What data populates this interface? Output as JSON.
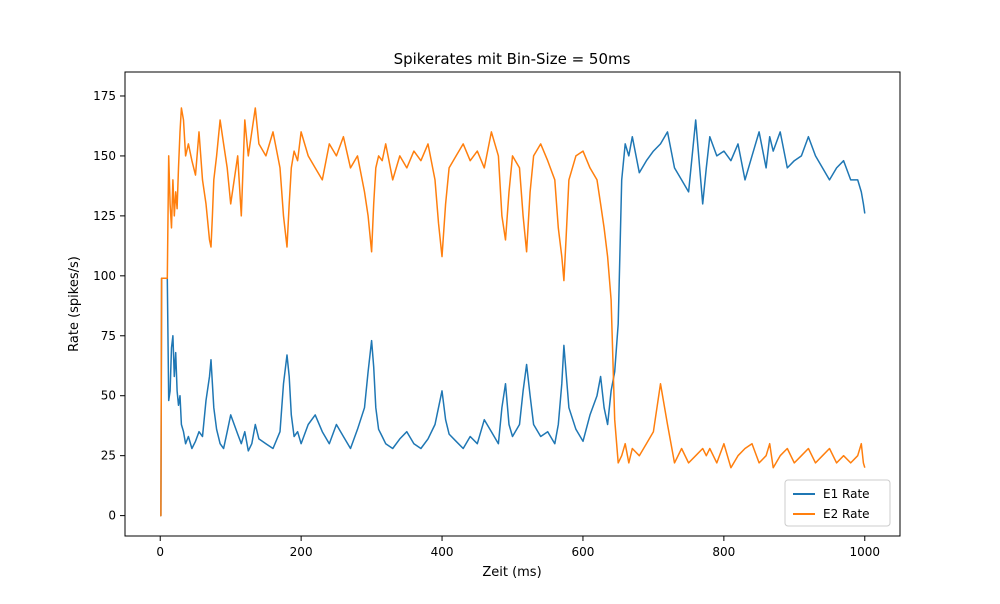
{
  "chart_data": {
    "type": "line",
    "title": "Spikerates mit Bin-Size = 50ms",
    "xlabel": "Zeit (ms)",
    "ylabel": "Rate (spikes/s)",
    "xlim": [
      -50,
      1050
    ],
    "ylim": [
      -8.5,
      185
    ],
    "xticks": [
      0,
      200,
      400,
      600,
      800,
      1000
    ],
    "yticks": [
      0,
      25,
      50,
      75,
      100,
      125,
      150,
      175
    ],
    "grid": false,
    "legend": "lower-right",
    "series": [
      {
        "name": "E1 Rate",
        "color": "#1f77b4",
        "x": [
          0,
          1,
          2,
          3,
          4,
          5,
          6,
          7,
          8,
          10,
          12,
          14,
          16,
          18,
          20,
          22,
          24,
          26,
          28,
          30,
          33,
          36,
          40,
          45,
          50,
          55,
          60,
          65,
          70,
          72,
          74,
          76,
          80,
          85,
          90,
          95,
          100,
          105,
          110,
          115,
          120,
          125,
          130,
          135,
          140,
          150,
          160,
          170,
          175,
          180,
          183,
          186,
          190,
          195,
          200,
          210,
          220,
          230,
          240,
          250,
          260,
          270,
          280,
          290,
          295,
          300,
          303,
          306,
          310,
          315,
          320,
          330,
          340,
          350,
          360,
          370,
          380,
          390,
          395,
          400,
          405,
          410,
          420,
          430,
          440,
          450,
          460,
          470,
          480,
          485,
          490,
          495,
          500,
          510,
          515,
          520,
          525,
          530,
          540,
          550,
          560,
          565,
          570,
          573,
          576,
          580,
          590,
          600,
          610,
          620,
          625,
          630,
          635,
          640,
          645,
          650,
          655,
          660,
          665,
          670,
          680,
          690,
          700,
          710,
          720,
          730,
          740,
          750,
          760,
          770,
          775,
          780,
          790,
          800,
          810,
          820,
          830,
          840,
          850,
          860,
          865,
          870,
          880,
          890,
          900,
          910,
          920,
          930,
          940,
          950,
          960,
          970,
          980,
          990,
          995,
          998,
          1000
        ],
        "y": [
          0,
          0,
          99,
          99,
          99,
          99,
          99,
          99,
          99,
          99,
          48,
          52,
          70,
          75,
          58,
          68,
          52,
          46,
          50,
          38,
          35,
          30,
          33,
          28,
          31,
          35,
          33,
          48,
          58,
          65,
          55,
          45,
          36,
          30,
          28,
          35,
          42,
          38,
          34,
          30,
          35,
          27,
          30,
          38,
          32,
          30,
          28,
          35,
          55,
          67,
          58,
          42,
          33,
          35,
          30,
          38,
          42,
          35,
          30,
          38,
          33,
          28,
          36,
          45,
          60,
          73,
          62,
          45,
          36,
          33,
          30,
          28,
          32,
          35,
          30,
          28,
          32,
          38,
          45,
          52,
          40,
          34,
          31,
          28,
          33,
          30,
          40,
          35,
          30,
          45,
          55,
          38,
          33,
          38,
          52,
          63,
          50,
          38,
          33,
          35,
          30,
          38,
          55,
          71,
          60,
          45,
          36,
          31,
          42,
          50,
          58,
          45,
          38,
          52,
          60,
          80,
          140,
          155,
          150,
          158,
          143,
          148,
          152,
          155,
          160,
          145,
          140,
          135,
          165,
          130,
          145,
          158,
          150,
          152,
          148,
          155,
          140,
          150,
          160,
          145,
          158,
          152,
          160,
          145,
          148,
          150,
          158,
          150,
          145,
          140,
          145,
          148,
          140,
          140,
          135,
          130,
          126
        ]
      },
      {
        "name": "E2 Rate",
        "color": "#ff7f0e",
        "x": [
          0,
          1,
          2,
          3,
          4,
          5,
          6,
          7,
          8,
          10,
          12,
          14,
          16,
          18,
          20,
          22,
          24,
          26,
          28,
          30,
          33,
          36,
          40,
          45,
          50,
          55,
          60,
          65,
          70,
          72,
          74,
          76,
          80,
          85,
          90,
          95,
          100,
          105,
          110,
          115,
          120,
          125,
          130,
          135,
          140,
          150,
          160,
          170,
          175,
          180,
          183,
          186,
          190,
          195,
          200,
          210,
          220,
          230,
          240,
          250,
          260,
          270,
          280,
          290,
          295,
          300,
          303,
          306,
          310,
          315,
          320,
          330,
          340,
          350,
          360,
          370,
          380,
          390,
          395,
          400,
          405,
          410,
          420,
          430,
          440,
          450,
          460,
          470,
          480,
          485,
          490,
          495,
          500,
          510,
          515,
          520,
          525,
          530,
          540,
          550,
          560,
          565,
          570,
          573,
          576,
          580,
          590,
          600,
          610,
          620,
          625,
          630,
          635,
          640,
          645,
          650,
          655,
          660,
          665,
          670,
          680,
          690,
          700,
          710,
          720,
          730,
          740,
          750,
          760,
          770,
          775,
          780,
          790,
          800,
          810,
          820,
          830,
          840,
          850,
          860,
          865,
          870,
          880,
          890,
          900,
          910,
          920,
          930,
          940,
          950,
          960,
          970,
          980,
          990,
          995,
          998,
          1000
        ],
        "y": [
          0,
          0,
          99,
          99,
          99,
          99,
          99,
          99,
          99,
          99,
          150,
          130,
          120,
          140,
          125,
          135,
          128,
          145,
          160,
          170,
          165,
          150,
          155,
          148,
          142,
          160,
          140,
          130,
          115,
          112,
          125,
          140,
          150,
          165,
          155,
          145,
          130,
          140,
          150,
          125,
          165,
          150,
          160,
          170,
          155,
          150,
          160,
          145,
          125,
          112,
          130,
          145,
          152,
          148,
          160,
          150,
          145,
          140,
          155,
          150,
          158,
          145,
          150,
          135,
          125,
          110,
          130,
          145,
          150,
          148,
          155,
          140,
          150,
          145,
          152,
          148,
          155,
          140,
          122,
          108,
          130,
          145,
          150,
          155,
          148,
          152,
          145,
          160,
          150,
          125,
          115,
          135,
          150,
          145,
          125,
          110,
          135,
          150,
          155,
          148,
          140,
          120,
          108,
          98,
          115,
          140,
          150,
          152,
          145,
          140,
          130,
          120,
          108,
          90,
          40,
          22,
          25,
          30,
          22,
          28,
          25,
          30,
          35,
          55,
          38,
          22,
          28,
          22,
          25,
          28,
          25,
          28,
          22,
          30,
          20,
          25,
          28,
          30,
          22,
          25,
          30,
          20,
          25,
          28,
          22,
          25,
          28,
          22,
          25,
          28,
          22,
          25,
          22,
          25,
          30,
          22,
          20
        ]
      }
    ]
  }
}
